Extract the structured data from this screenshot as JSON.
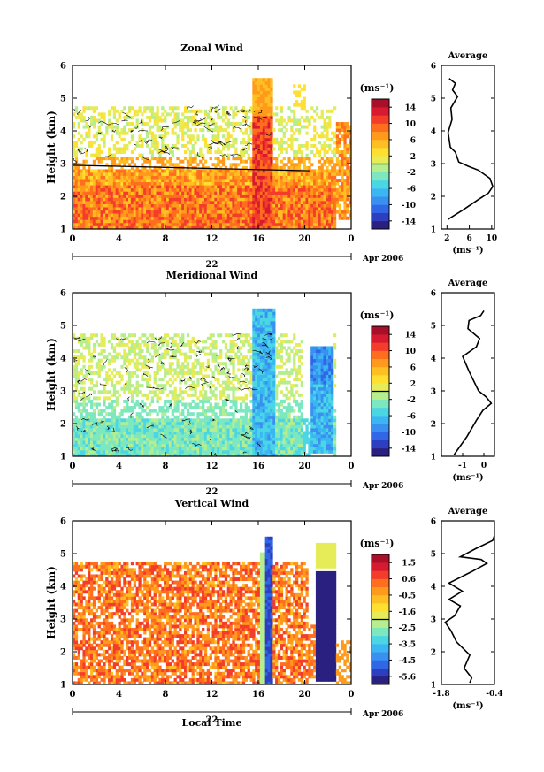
{
  "chart_data": [
    {
      "type": "heatmap",
      "title": "Zonal Wind",
      "ylabel": "Height (km)",
      "xlabel": "",
      "x_ticks": [
        "0",
        "4",
        "8",
        "12",
        "16",
        "20",
        "0"
      ],
      "y_ticks": [
        "1",
        "2",
        "3",
        "4",
        "5",
        "6"
      ],
      "xlim": [
        0,
        24
      ],
      "ylim": [
        1,
        6
      ],
      "date_label": "22",
      "month_label": "Apr 2006",
      "colorbar": {
        "unit": "(ms⁻¹)",
        "tick_labels": [
          "14",
          "10",
          "6",
          "2",
          "-2",
          "-6",
          "-10",
          "-14"
        ],
        "range": [
          -16,
          16
        ],
        "colors": [
          "#2a2080",
          "#2d3fc0",
          "#2f67e6",
          "#3a90f0",
          "#3ab6f2",
          "#4bd6e4",
          "#7de8c0",
          "#b6ee8e",
          "#e6ec58",
          "#ffe030",
          "#ffbf22",
          "#ff9a1c",
          "#ff6e1e",
          "#f43c2a",
          "#d81a30",
          "#a8102a"
        ]
      },
      "profile": {
        "title": "Average",
        "xlabel": "(ms⁻¹)",
        "x_ticks": [
          "2",
          "6",
          "10"
        ],
        "xlim": [
          1,
          10.5
        ],
        "points": [
          [
            2.2,
            1.3
          ],
          [
            5.0,
            1.6
          ],
          [
            7.6,
            1.9
          ],
          [
            9.4,
            2.1
          ],
          [
            10.2,
            2.3
          ],
          [
            9.7,
            2.55
          ],
          [
            7.6,
            2.8
          ],
          [
            5.8,
            2.92
          ],
          [
            4.1,
            3.05
          ],
          [
            3.5,
            3.35
          ],
          [
            2.6,
            3.5
          ],
          [
            2.2,
            3.95
          ],
          [
            2.9,
            4.35
          ],
          [
            2.7,
            4.7
          ],
          [
            3.9,
            5.05
          ],
          [
            3.0,
            5.25
          ],
          [
            3.5,
            5.45
          ],
          [
            2.4,
            5.6
          ]
        ]
      }
    },
    {
      "type": "heatmap",
      "title": "Meridional Wind",
      "ylabel": "Height (km)",
      "xlabel": "",
      "x_ticks": [
        "0",
        "4",
        "8",
        "12",
        "16",
        "20",
        "0"
      ],
      "y_ticks": [
        "1",
        "2",
        "3",
        "4",
        "5",
        "6"
      ],
      "xlim": [
        0,
        24
      ],
      "ylim": [
        1,
        6
      ],
      "date_label": "22",
      "month_label": "Apr 2006",
      "colorbar": {
        "unit": "(ms⁻¹)",
        "tick_labels": [
          "14",
          "10",
          "6",
          "2",
          "-2",
          "-6",
          "-10",
          "-14"
        ],
        "range": [
          -16,
          16
        ],
        "colors": [
          "#2a2080",
          "#2d3fc0",
          "#2f67e6",
          "#3a90f0",
          "#3ab6f2",
          "#4bd6e4",
          "#7de8c0",
          "#b6ee8e",
          "#e6ec58",
          "#ffe030",
          "#ffbf22",
          "#ff9a1c",
          "#ff6e1e",
          "#f43c2a",
          "#d81a30",
          "#a8102a"
        ]
      },
      "profile": {
        "title": "Average",
        "xlabel": "(ms⁻¹)",
        "x_ticks": [
          "-1",
          "0"
        ],
        "xlim": [
          -2,
          0.5
        ],
        "points": [
          [
            -1.4,
            1.05
          ],
          [
            -0.8,
            1.6
          ],
          [
            -0.35,
            2.1
          ],
          [
            -0.05,
            2.4
          ],
          [
            0.35,
            2.62
          ],
          [
            0.1,
            2.82
          ],
          [
            -0.25,
            3.0
          ],
          [
            -0.7,
            3.6
          ],
          [
            -1.0,
            4.05
          ],
          [
            -0.35,
            4.35
          ],
          [
            -0.2,
            4.6
          ],
          [
            -0.75,
            4.9
          ],
          [
            -0.7,
            5.15
          ],
          [
            -0.15,
            5.3
          ],
          [
            0.0,
            5.45
          ]
        ]
      }
    },
    {
      "type": "heatmap",
      "title": "Vertical Wind",
      "ylabel": "Height (km)",
      "xlabel": "Local Time",
      "x_ticks": [
        "0",
        "4",
        "8",
        "12",
        "16",
        "20",
        "0"
      ],
      "y_ticks": [
        "1",
        "2",
        "3",
        "4",
        "5",
        "6"
      ],
      "xlim": [
        0,
        24
      ],
      "ylim": [
        1,
        6
      ],
      "date_label": "22",
      "month_label": "Apr 2006",
      "colorbar": {
        "unit": "(ms⁻¹)",
        "tick_labels": [
          "1.5",
          "0.6",
          "-0.5",
          "-1.6",
          "-2.5",
          "-3.5",
          "-4.5",
          "-5.6"
        ],
        "range": [
          -6.1,
          2.0
        ],
        "colors": [
          "#2a2080",
          "#2d3fc0",
          "#2f67e6",
          "#3a90f0",
          "#3ab6f2",
          "#4bd6e4",
          "#7de8c0",
          "#b6ee8e",
          "#e6ec58",
          "#ffe030",
          "#ffbf22",
          "#ff9a1c",
          "#ff6e1e",
          "#f43c2a",
          "#d81a30",
          "#a8102a"
        ]
      },
      "profile": {
        "title": "Average",
        "xlabel": "(ms⁻¹)",
        "x_ticks": [
          "-1.8",
          "-0.4"
        ],
        "xlim": [
          -1.8,
          -0.4
        ],
        "points": [
          [
            -1.05,
            1.05
          ],
          [
            -1.0,
            1.2
          ],
          [
            -1.2,
            1.5
          ],
          [
            -1.05,
            1.9
          ],
          [
            -1.4,
            2.3
          ],
          [
            -1.55,
            2.65
          ],
          [
            -1.7,
            2.9
          ],
          [
            -1.45,
            3.1
          ],
          [
            -1.3,
            3.4
          ],
          [
            -1.6,
            3.6
          ],
          [
            -1.25,
            3.85
          ],
          [
            -1.6,
            4.1
          ],
          [
            -1.0,
            4.45
          ],
          [
            -0.6,
            4.7
          ],
          [
            -0.75,
            4.82
          ],
          [
            -1.3,
            4.9
          ],
          [
            -0.9,
            5.15
          ],
          [
            -0.45,
            5.4
          ],
          [
            -0.4,
            5.55
          ]
        ]
      }
    }
  ]
}
